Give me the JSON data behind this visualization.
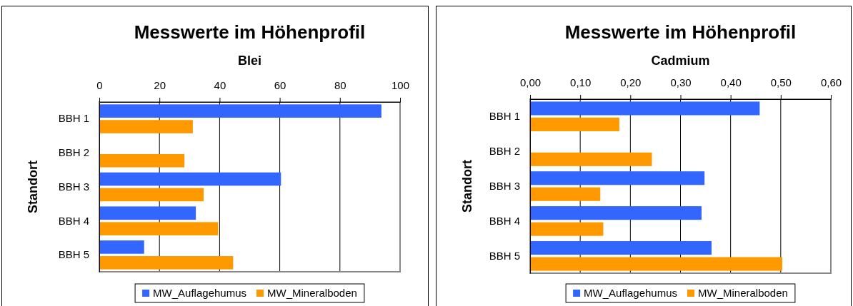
{
  "chart_data": [
    {
      "type": "bar",
      "orientation": "horizontal",
      "title": "Messwerte im Höhenprofil",
      "subtitle": "Blei",
      "ylabel": "Standort",
      "categories": [
        "BBH 1",
        "BBH 2",
        "BBH 3",
        "BBH 4",
        "BBH 5"
      ],
      "series": [
        {
          "name": "MW_Auflagehumus",
          "color": "#3366ff",
          "values": [
            93.8,
            null,
            60.4,
            32.1,
            14.9
          ]
        },
        {
          "name": "MW_Mineralboden",
          "color": "#ff9900",
          "values": [
            31.1,
            28.3,
            34.7,
            39.5,
            44.5
          ]
        }
      ],
      "xlim": [
        0,
        100
      ],
      "xticks": [
        0,
        20,
        40,
        60,
        80,
        100
      ],
      "grid": "x",
      "legend": "bottom"
    },
    {
      "type": "bar",
      "orientation": "horizontal",
      "title": "Messwerte im Höhenprofil",
      "subtitle": "Cadmium",
      "ylabel": "Standort",
      "categories": [
        "BBH 1",
        "BBH 2",
        "BBH 3",
        "BBH 4",
        "BBH 5"
      ],
      "series": [
        {
          "name": "MW_Auflagehumus",
          "color": "#3366ff",
          "values": [
            0.458,
            null,
            0.348,
            0.342,
            0.362
          ]
        },
        {
          "name": "MW_Mineralboden",
          "color": "#ff9900",
          "values": [
            0.178,
            0.243,
            0.14,
            0.146,
            0.503
          ]
        }
      ],
      "xlim": [
        0,
        0.6
      ],
      "xticks": [
        {
          "value": 0,
          "label": "0,00"
        },
        {
          "value": 0.1,
          "label": "0,10"
        },
        {
          "value": 0.2,
          "label": "0,20"
        },
        {
          "value": 0.3,
          "label": "0,30"
        },
        {
          "value": 0.4,
          "label": "0,40"
        },
        {
          "value": 0.5,
          "label": "0,50"
        },
        {
          "value": 0.6,
          "label": "0,60"
        }
      ],
      "grid": "x",
      "legend": "bottom"
    }
  ]
}
